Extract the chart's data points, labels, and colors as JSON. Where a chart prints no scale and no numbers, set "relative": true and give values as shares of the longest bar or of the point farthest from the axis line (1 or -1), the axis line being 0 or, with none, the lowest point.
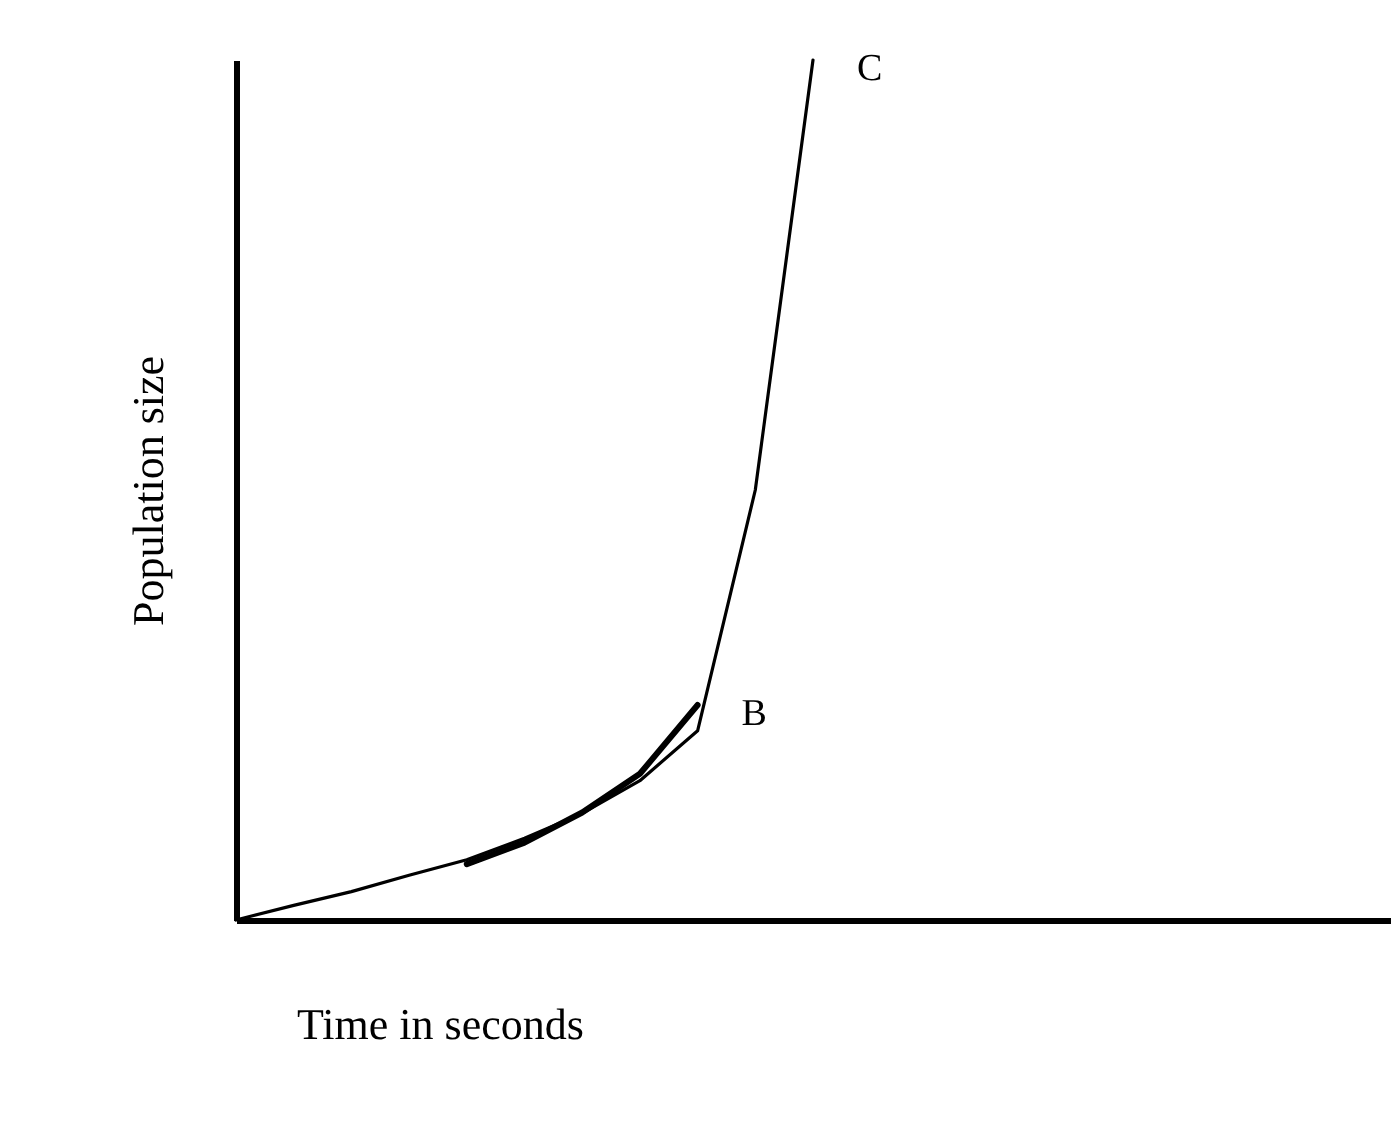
{
  "chart_data": {
    "type": "line",
    "xlabel": "Time in seconds",
    "ylabel": "Population size",
    "relative": true,
    "grid": false,
    "legend": false,
    "marker": "none",
    "line_style": "solid",
    "categories": [
      null,
      null,
      null,
      null,
      null,
      null,
      null,
      null,
      null,
      null,
      null,
      null,
      null,
      null,
      null,
      null,
      null,
      null,
      null,
      null,
      null
    ],
    "series": [
      {
        "color": "#000000",
        "values": [
          0,
          0.017,
          0.033,
          0.052,
          0.07,
          0.095,
          0.124,
          0.162,
          0.22,
          0.5,
          1,
          null,
          null,
          null,
          null,
          null,
          null,
          null,
          null,
          null,
          null
        ]
      },
      {
        "color": "#000000",
        "values": [
          null,
          null,
          null,
          null,
          0.065,
          0.09,
          0.125,
          0.17,
          0.25,
          null,
          null,
          null,
          null,
          null,
          null,
          null,
          null,
          null,
          null,
          null,
          null
        ]
      }
    ],
    "annotations": [
      "C",
      "B"
    ]
  }
}
